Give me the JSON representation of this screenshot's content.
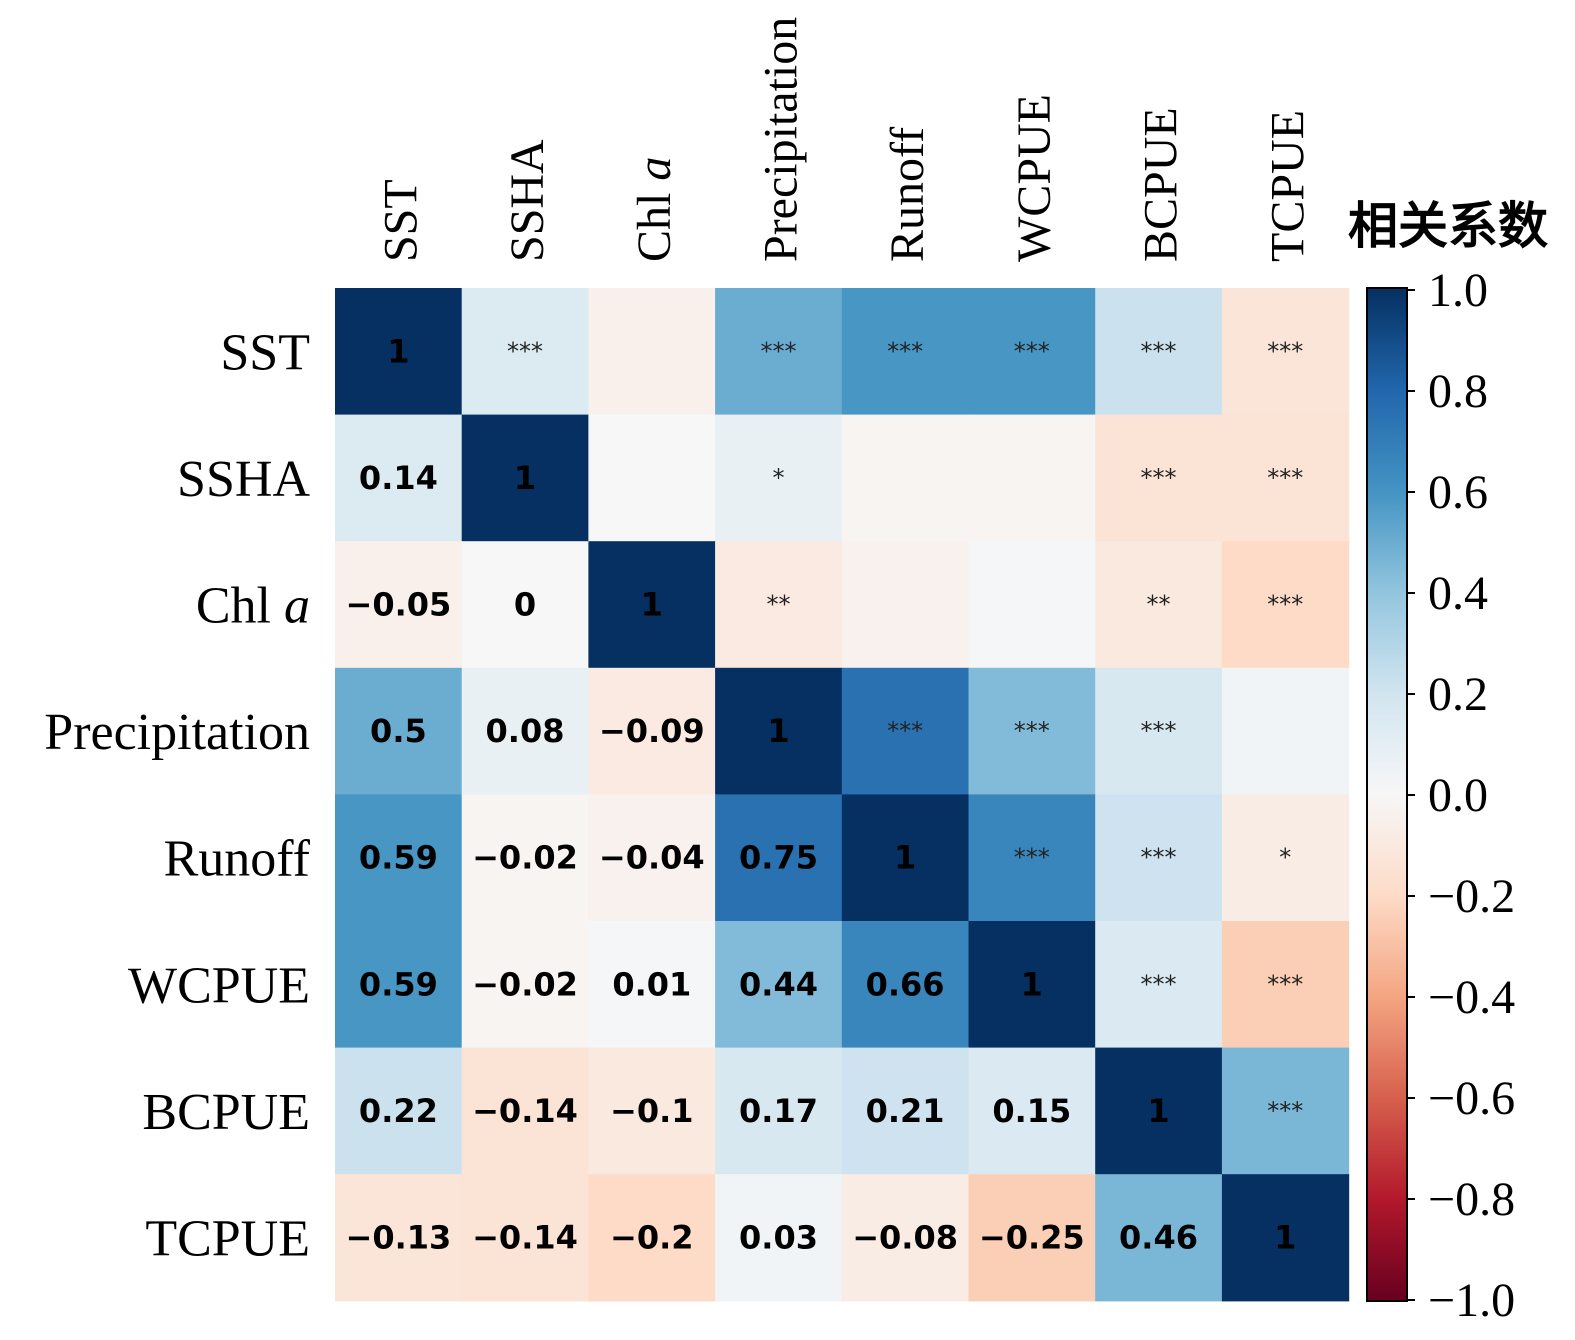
{
  "chart_data": {
    "type": "heatmap",
    "variables": [
      "SST",
      "SSHA",
      "Chl a",
      "Precipitation",
      "Runoff",
      "WCPUE",
      "BCPUE",
      "TCPUE"
    ],
    "matrix": [
      [
        1,
        0.14,
        -0.05,
        0.5,
        0.59,
        0.59,
        0.22,
        -0.13
      ],
      [
        0.14,
        1,
        0,
        0.08,
        -0.02,
        -0.02,
        -0.14,
        -0.14
      ],
      [
        -0.05,
        0,
        1,
        -0.09,
        -0.04,
        0.01,
        -0.1,
        -0.2
      ],
      [
        0.5,
        0.08,
        -0.09,
        1,
        0.75,
        0.44,
        0.17,
        0.03
      ],
      [
        0.59,
        -0.02,
        -0.04,
        0.75,
        1,
        0.66,
        0.21,
        -0.08
      ],
      [
        0.59,
        -0.02,
        0.01,
        0.44,
        0.66,
        1,
        0.15,
        -0.25
      ],
      [
        0.22,
        -0.14,
        -0.1,
        0.17,
        0.21,
        0.15,
        1,
        0.46
      ],
      [
        -0.13,
        -0.14,
        -0.2,
        0.03,
        -0.08,
        -0.25,
        0.46,
        1
      ]
    ],
    "lower_labels": [
      [],
      [
        "0.14"
      ],
      [
        "−0.05",
        "0"
      ],
      [
        "0.5",
        "0.08",
        "−0.09"
      ],
      [
        "0.59",
        "−0.02",
        "−0.04",
        "0.75"
      ],
      [
        "0.59",
        "−0.02",
        "0.01",
        "0.44",
        "0.66"
      ],
      [
        "0.22",
        "−0.14",
        "−0.1",
        "0.17",
        "0.21",
        "0.15"
      ],
      [
        "−0.13",
        "−0.14",
        "−0.2",
        "0.03",
        "−0.08",
        "−0.25",
        "0.46"
      ]
    ],
    "diagonal_label": "1",
    "significance": [
      [
        "",
        "***",
        "",
        "***",
        "***",
        "***",
        "***",
        "***"
      ],
      [
        "",
        "",
        "",
        "*",
        "",
        "",
        "***",
        "***"
      ],
      [
        "",
        "",
        "",
        "**",
        "",
        "",
        "**",
        "***"
      ],
      [
        "",
        "",
        "",
        "",
        "***",
        "***",
        "***",
        ""
      ],
      [
        "",
        "",
        "",
        "",
        "",
        "***",
        "***",
        "*"
      ],
      [
        "",
        "",
        "",
        "",
        "",
        "",
        "***",
        "***"
      ],
      [
        "",
        "",
        "",
        "",
        "",
        "",
        "",
        "***"
      ],
      [
        "",
        "",
        "",
        "",
        "",
        "",
        "",
        ""
      ]
    ],
    "colorbar": {
      "title": "相关系数",
      "range": [
        -1,
        1
      ],
      "ticks": [
        "1.0",
        "0.8",
        "0.6",
        "0.4",
        "0.2",
        "0.0",
        "−0.2",
        "−0.4",
        "−0.6",
        "−0.8",
        "−1.0"
      ],
      "colormap": "RdBu"
    }
  }
}
